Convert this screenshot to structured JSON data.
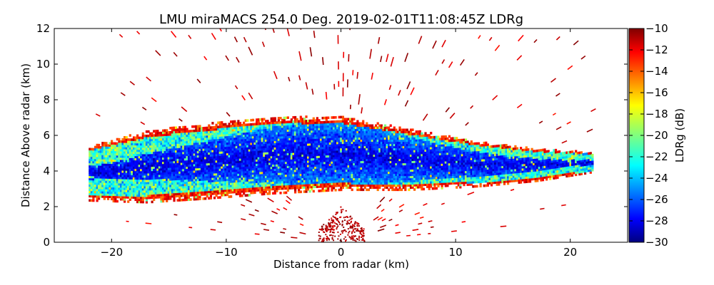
{
  "chart_data": {
    "type": "heatmap",
    "title": "LMU miraMACS 254.0 Deg. 2019-02-01T11:08:45Z  LDRg",
    "xlabel": "Distance from radar (km)",
    "ylabel": "Distance Above radar  (km)",
    "xlim": [
      -25,
      25
    ],
    "ylim": [
      0,
      12
    ],
    "x_ticks": [
      -20,
      -10,
      0,
      10,
      20
    ],
    "y_ticks": [
      0,
      2,
      4,
      6,
      8,
      10,
      12
    ],
    "grid": false,
    "colorbar": {
      "label": "LDRg (dB)",
      "range": [
        -30,
        -10
      ],
      "ticks": [
        -30,
        -28,
        -26,
        -24,
        -22,
        -20,
        -18,
        -16,
        -14,
        -12,
        -10
      ],
      "colormap": "jet"
    },
    "scan": {
      "x_range": [
        -22,
        22
      ],
      "cloud_layer": [
        {
          "x": -22,
          "bottom": 2.3,
          "top": 5.4
        },
        {
          "x": -17,
          "bottom": 2.2,
          "top": 6.2
        },
        {
          "x": -12,
          "bottom": 2.4,
          "top": 6.6
        },
        {
          "x": -6,
          "bottom": 2.7,
          "top": 7.0
        },
        {
          "x": 0,
          "bottom": 2.9,
          "top": 7.0
        },
        {
          "x": 6,
          "bottom": 2.9,
          "top": 6.3
        },
        {
          "x": 12,
          "bottom": 3.1,
          "top": 5.6
        },
        {
          "x": 17,
          "bottom": 3.4,
          "top": 5.2
        },
        {
          "x": 22,
          "bottom": 3.9,
          "top": 5.0
        }
      ],
      "core_ldr": -28,
      "edge_ldr": -19,
      "outer_ldr": -11,
      "noise_ldr": -10,
      "near_radar_clutter": {
        "x": [
          -2,
          2
        ],
        "top": 2.0,
        "ldr": -10
      }
    }
  }
}
